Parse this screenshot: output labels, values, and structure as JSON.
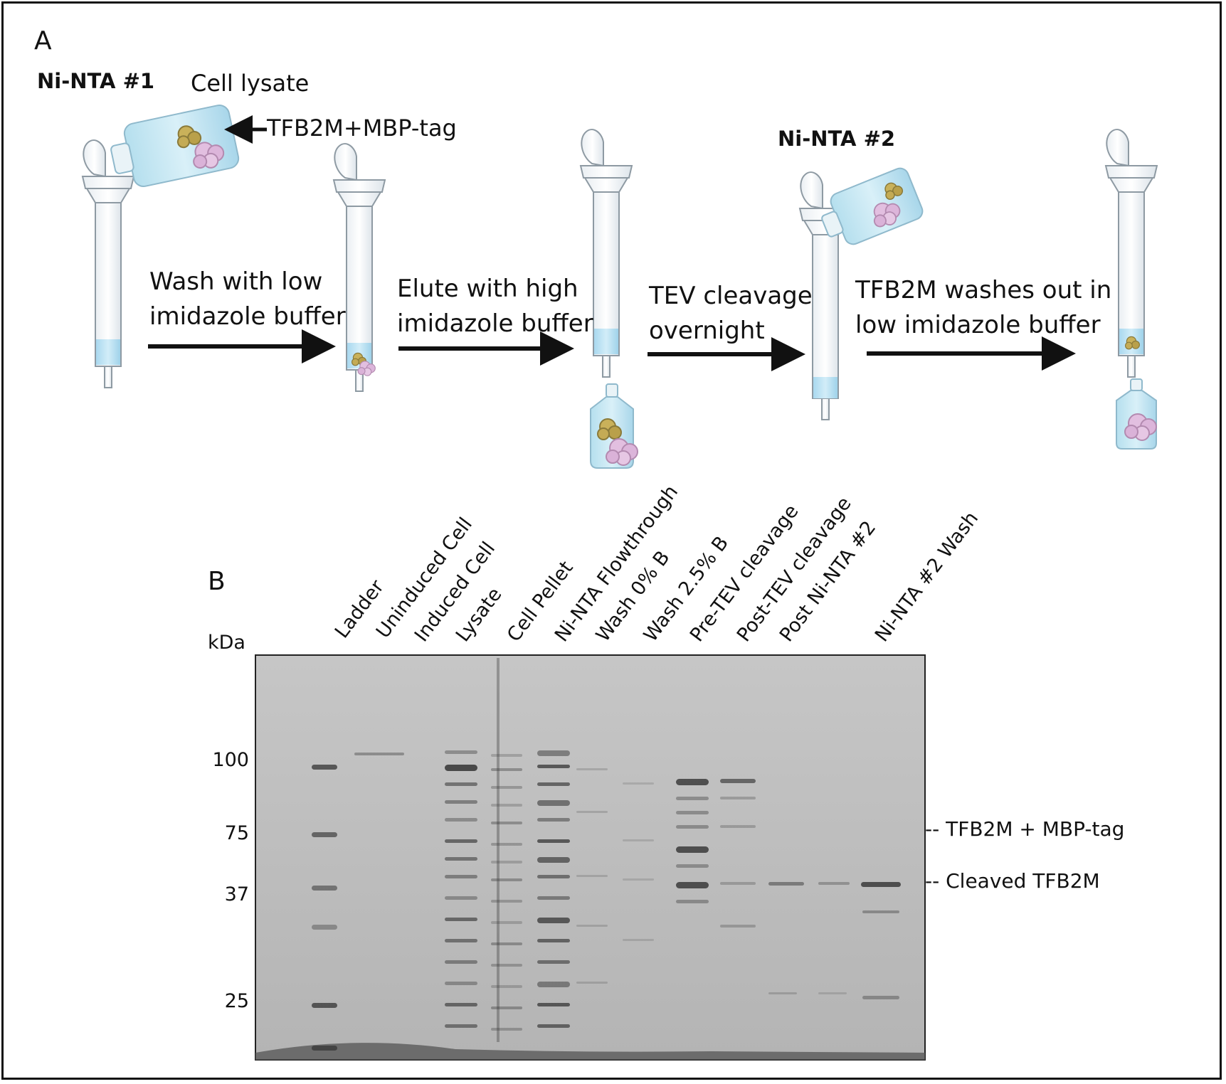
{
  "panel_a": {
    "letter": "A",
    "column1_title": "Ni-NTA #1",
    "column2_title": "Ni-NTA #2",
    "lysate_label": "Cell lysate",
    "tag_label": "TFB2M+MBP-tag",
    "steps": [
      {
        "line1": "Wash with low",
        "line2": "imidazole buffer"
      },
      {
        "line1": "Elute with high",
        "line2": "imidazole buffer"
      },
      {
        "line1": "TEV cleavage",
        "line2": "overnight"
      },
      {
        "line1": "TFB2M washes out in",
        "line2": "low imidazole buffer"
      }
    ]
  },
  "panel_b": {
    "letter": "B",
    "kda_label": "kDa",
    "lanes": [
      "Ladder",
      "Uninduced Cell",
      "Induced Cell",
      "Lysate",
      "Cell Pellet",
      "Ni-NTA Flowthrough",
      "Wash 0% B",
      "Wash 2.5% B",
      "Pre-TEV cleavage",
      "Post-TEV cleavage",
      "Post Ni-NTA #2",
      "Ni-NTA #2 Wash"
    ],
    "mw_markers": [
      "100",
      "75",
      "37",
      "25"
    ],
    "annotations": [
      "-- TFB2M + MBP-tag",
      "-- Cleaved TFB2M"
    ]
  }
}
